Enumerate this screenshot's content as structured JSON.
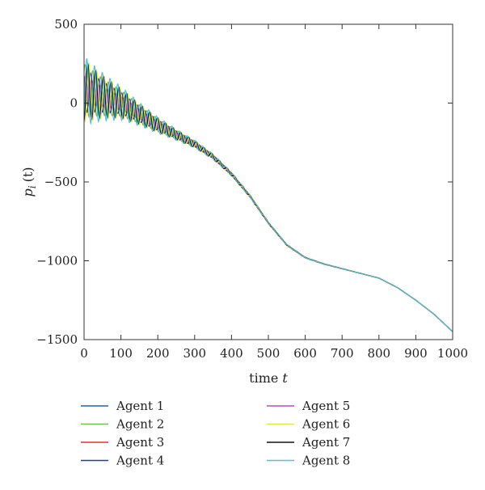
{
  "chart_data": {
    "type": "line",
    "xlabel": "time",
    "xlabel_var": "t",
    "ylabel_var": "p",
    "ylabel_sub": "i",
    "ylabel_arg": "(t)",
    "xlim": [
      0,
      1000
    ],
    "ylim": [
      -1500,
      500
    ],
    "xticks": [
      0,
      100,
      200,
      300,
      400,
      500,
      600,
      700,
      800,
      900,
      1000
    ],
    "yticks": [
      500,
      0,
      -500,
      -1000,
      -1500
    ],
    "grid": false,
    "legend_position": "bottom",
    "trend": {
      "x": [
        0,
        100,
        200,
        300,
        350,
        400,
        450,
        500,
        550,
        600,
        650,
        700,
        750,
        800,
        850,
        900,
        950,
        1000
      ],
      "y": [
        80,
        0,
        -140,
        -260,
        -340,
        -450,
        -590,
        -760,
        -900,
        -980,
        -1020,
        -1050,
        -1080,
        -1110,
        -1170,
        -1250,
        -1340,
        -1450
      ]
    },
    "series": [
      {
        "name": "Agent 1",
        "color": "#2b5ea7",
        "amplitude": 110,
        "phase": 0.0
      },
      {
        "name": "Agent 2",
        "color": "#6fbf4a",
        "amplitude": 170,
        "phase": 0.8
      },
      {
        "name": "Agent 3",
        "color": "#e2342b",
        "amplitude": 90,
        "phase": 1.6
      },
      {
        "name": "Agent 4",
        "color": "#1f3f8f",
        "amplitude": 140,
        "phase": 2.4
      },
      {
        "name": "Agent 5",
        "color": "#b054b0",
        "amplitude": 100,
        "phase": 3.2
      },
      {
        "name": "Agent 6",
        "color": "#e6e34a",
        "amplitude": 200,
        "phase": 4.0
      },
      {
        "name": "Agent 7",
        "color": "#111111",
        "amplitude": 190,
        "phase": 4.8
      },
      {
        "name": "Agent 8",
        "color": "#5bbfcf",
        "amplitude": 220,
        "phase": 5.6
      }
    ]
  }
}
